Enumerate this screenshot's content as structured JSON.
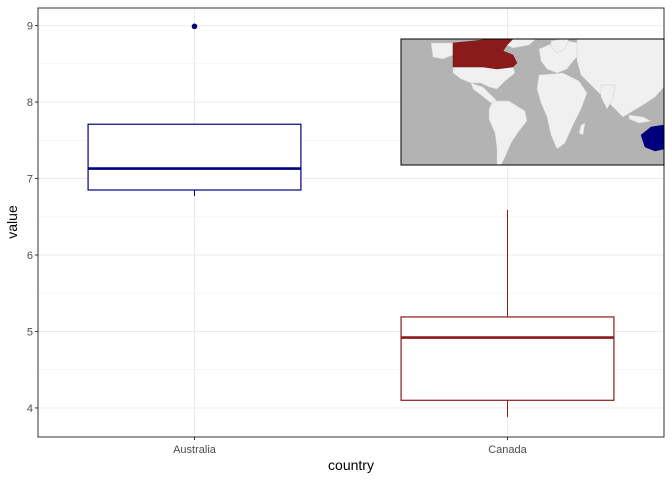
{
  "chart_data": {
    "type": "boxplot",
    "xlabel": "country",
    "ylabel": "value",
    "ylim": [
      3.62,
      9.23
    ],
    "y_ticks": [
      4,
      5,
      6,
      7,
      8,
      9
    ],
    "grid": true,
    "categories": [
      "Australia",
      "Canada"
    ],
    "boxes": [
      {
        "category": "Australia",
        "color": "#00007f",
        "whisker_low": 6.77,
        "q1": 6.85,
        "median": 7.13,
        "q3": 7.71,
        "whisker_high": 7.71,
        "outliers": [
          8.99
        ]
      },
      {
        "category": "Canada",
        "color": "#8b1a1a",
        "whisker_low": 3.88,
        "q1": 4.1,
        "median": 4.92,
        "q3": 5.19,
        "whisker_high": 6.59,
        "outliers": []
      }
    ],
    "inset": {
      "type": "world-map",
      "ocean_color": "#b3b3b3",
      "land_color": "#f0f0f0",
      "highlight": [
        {
          "region": "Canada",
          "color": "#8b1a1a"
        },
        {
          "region": "Australia",
          "color": "#00007f"
        }
      ]
    }
  }
}
